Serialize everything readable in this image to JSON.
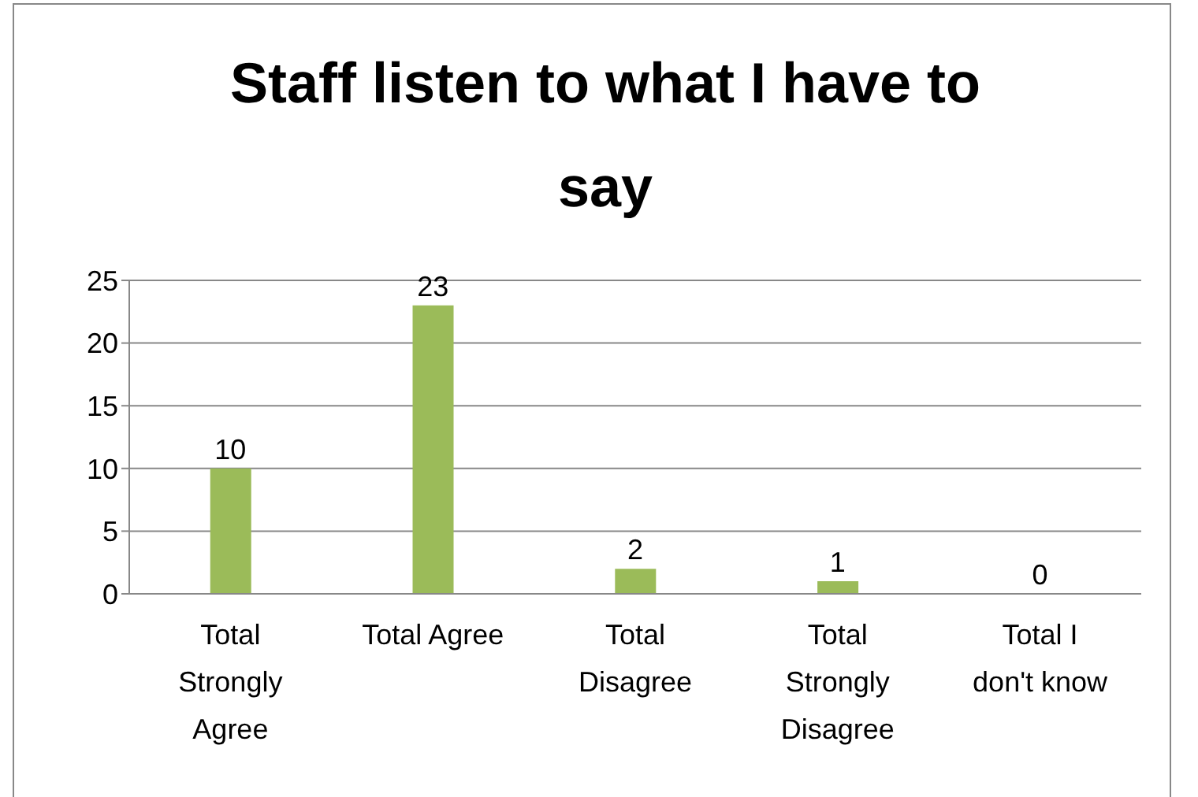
{
  "chart_data": {
    "type": "bar",
    "title": "Staff listen to what I have to say",
    "categories": [
      "Total Strongly Agree",
      "Total Agree",
      "Total Disagree",
      "Total Strongly Disagree",
      "Total I don't know"
    ],
    "values": [
      10,
      23,
      2,
      1,
      0
    ],
    "color": "#9bbb59",
    "ylim": [
      0,
      25
    ],
    "yticks": [
      0,
      5,
      10,
      15,
      20,
      25
    ],
    "grid": "y",
    "data_labels": true
  }
}
